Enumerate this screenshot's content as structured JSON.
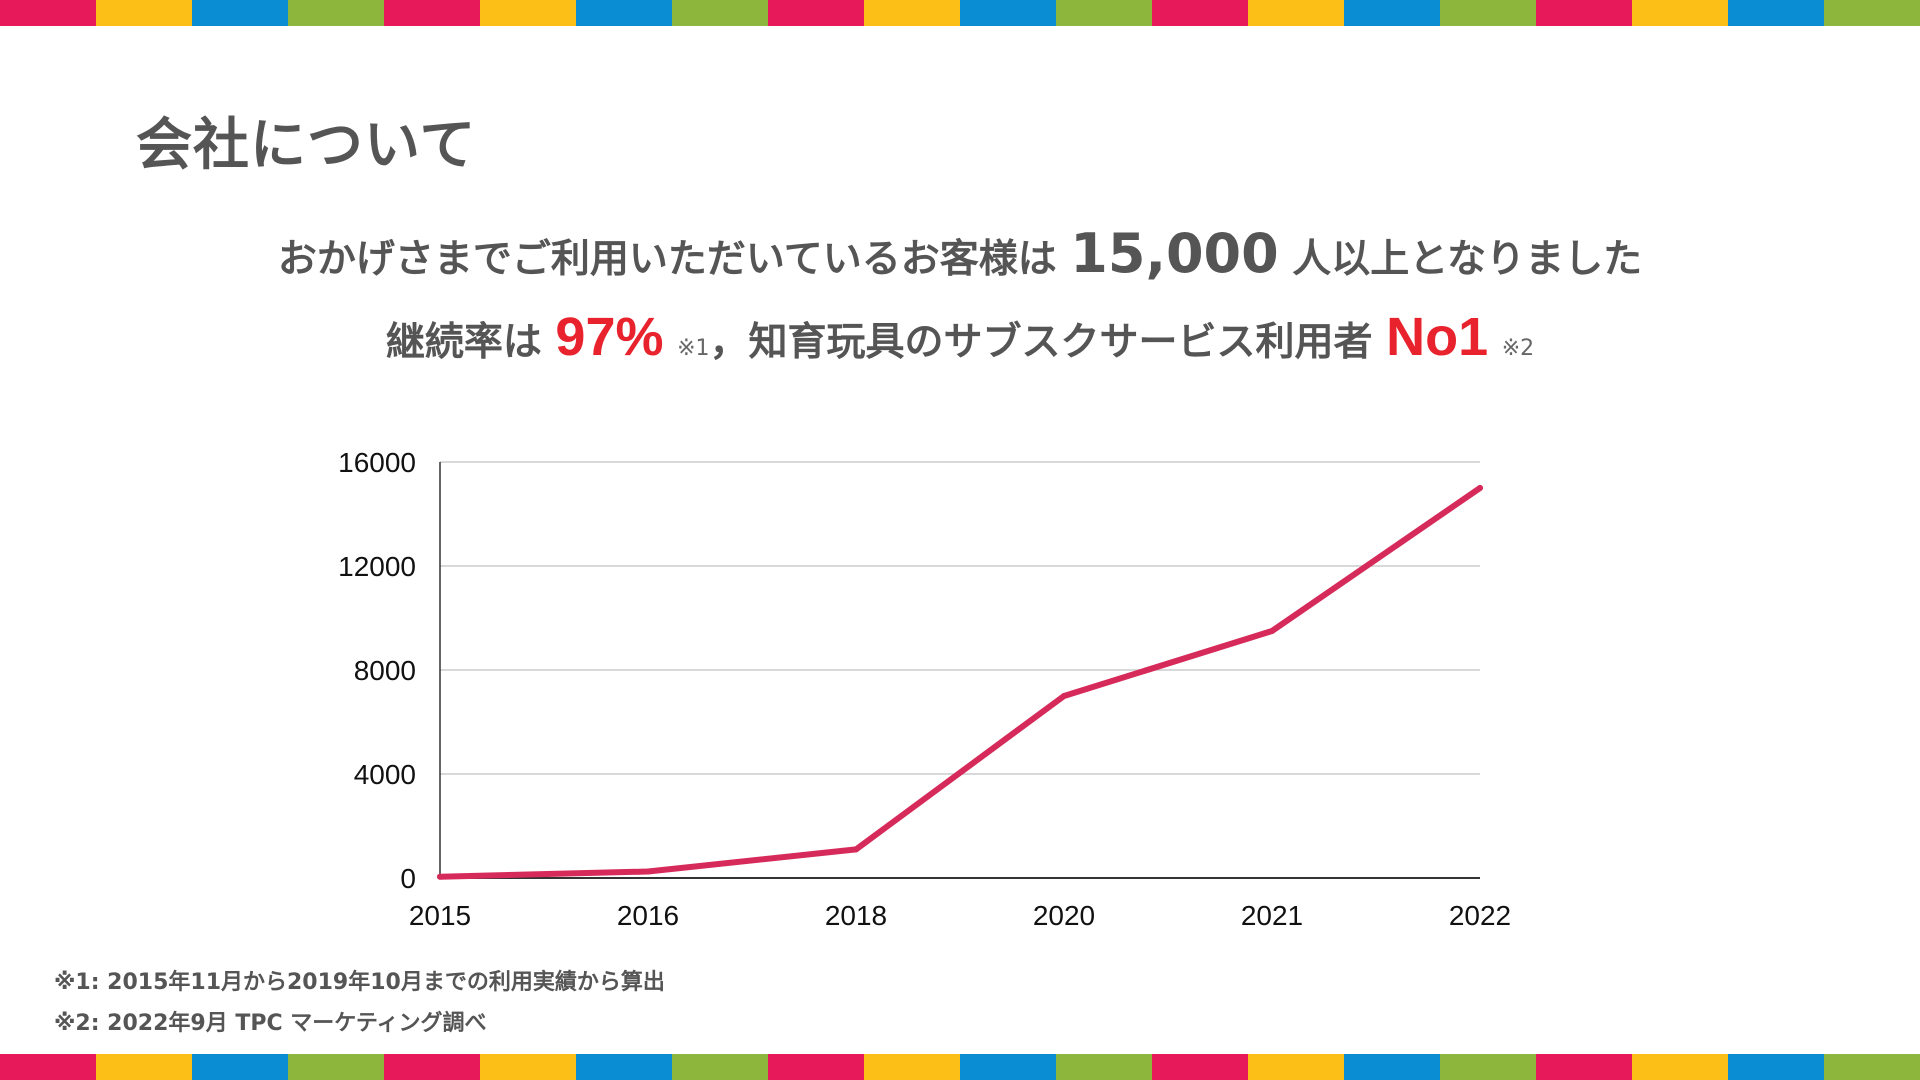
{
  "stripe_colors": [
    "#e8195a",
    "#fbbf18",
    "#0a8dd3",
    "#8cb63c"
  ],
  "title": "会社について",
  "headline1": {
    "prefix": "おかげさまでご利用いただいているお客様は",
    "number": "15,000",
    "suffix": "人以上となりました"
  },
  "headline2": {
    "a": "継続率は",
    "b": "97%",
    "c": "※1",
    "d": "，知育玩具のサブスクサービス利用者",
    "e": "No1",
    "f": "※2"
  },
  "chart_data": {
    "type": "line",
    "categories": [
      "2015",
      "2016",
      "2018",
      "2020",
      "2021",
      "2022"
    ],
    "series": [
      {
        "values": [
          50,
          250,
          1100,
          7000,
          9500,
          15000
        ],
        "color": "#d62a5a"
      }
    ],
    "yticks": [
      "0",
      "4000",
      "8000",
      "12000",
      "16000"
    ],
    "ylim": [
      0,
      16000
    ],
    "grid": true,
    "title": "",
    "xlabel": "",
    "ylabel": ""
  },
  "footnotes": [
    "※1: 2015年11月から2019年10月までの利用実績から算出",
    "※2: 2022年9月 TPC マーケティング調べ"
  ]
}
